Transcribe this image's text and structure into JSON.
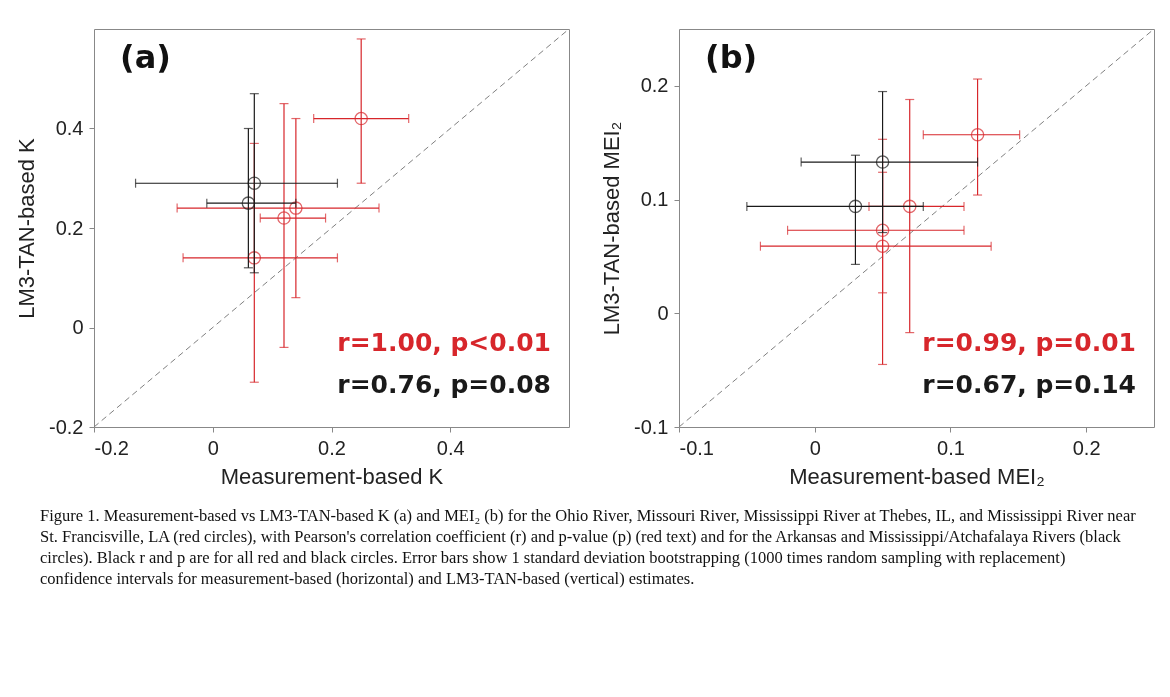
{
  "chart_data": [
    {
      "type": "scatter",
      "xlabel": "Measurement-based K",
      "ylabel": "LM3-TAN-based K",
      "xlim": [
        -0.2,
        0.6
      ],
      "ylim": [
        -0.2,
        0.6
      ],
      "xticks": [
        -0.2,
        0,
        0.2,
        0.4
      ],
      "yticks": [
        -0.2,
        0,
        0.2,
        0.4
      ],
      "marker": "circle",
      "series": [
        {
          "type": "line",
          "color": "#808080",
          "line_style": "dashed",
          "marker": "none",
          "x": [
            -0.2,
            0.6
          ],
          "values": [
            -0.2,
            0.6
          ]
        },
        {
          "color": "#d7262b",
          "x": [
            0.25,
            0.14,
            0.12,
            0.07
          ],
          "values": [
            0.42,
            0.24,
            0.22,
            0.14
          ],
          "errors": [
            [
              0.29,
              0.58
            ],
            [
              0.06,
              0.42
            ],
            [
              -0.04,
              0.45
            ],
            [
              -0.11,
              0.37
            ]
          ],
          "xerrors": [
            [
              0.17,
              0.33
            ],
            [
              -0.06,
              0.28
            ],
            [
              0.08,
              0.19
            ],
            [
              -0.05,
              0.21
            ]
          ]
        },
        {
          "color": "#1a1a1a",
          "x": [
            0.07,
            0.06
          ],
          "values": [
            0.29,
            0.25
          ],
          "errors": [
            0.18,
            [
              0.12,
              0.4
            ]
          ],
          "xerrors": [
            [
              -0.13,
              0.21
            ],
            [
              -0.01,
              0.14
            ]
          ]
        }
      ],
      "annotations": [
        "(a)",
        "r=1.00, p<0.01",
        "r=0.76, p=0.08"
      ]
    },
    {
      "type": "scatter",
      "xlabel": "Measurement-based MEI₂",
      "ylabel": "LM3-TAN-based MEI₂",
      "xlim": [
        -0.1,
        0.25
      ],
      "ylim": [
        -0.1,
        0.25
      ],
      "xticks": [
        -0.1,
        0,
        0.1,
        0.2
      ],
      "yticks": [
        -0.1,
        0,
        0.1,
        0.2
      ],
      "marker": "circle",
      "series": [
        {
          "type": "line",
          "color": "#808080",
          "line_style": "dashed",
          "marker": "none",
          "x": [
            -0.1,
            0.25
          ],
          "values": [
            -0.1,
            0.25
          ]
        },
        {
          "color": "#d7262b",
          "x": [
            0.12,
            0.07,
            0.05,
            0.05
          ],
          "values": [
            0.157,
            0.094,
            0.073,
            0.059
          ],
          "errors": [
            [
              0.104,
              0.206
            ],
            [
              -0.017,
              0.188
            ],
            [
              0.018,
              0.124
            ],
            [
              -0.045,
              0.153
            ]
          ],
          "xerrors": [
            [
              0.08,
              0.151
            ],
            [
              0.04,
              0.11
            ],
            [
              -0.02,
              0.11
            ],
            [
              -0.04,
              0.13
            ]
          ]
        },
        {
          "color": "#1a1a1a",
          "x": [
            0.05,
            0.03
          ],
          "values": [
            0.133,
            0.094
          ],
          "errors": [
            [
              0.071,
              0.195
            ],
            [
              0.043,
              0.139
            ]
          ],
          "xerrors": [
            [
              -0.01,
              0.12
            ],
            [
              -0.05,
              0.08
            ]
          ]
        }
      ],
      "annotations": [
        "(b)",
        "r=0.99, p=0.01",
        "r=0.67, p=0.14",
        "Figure 1. Measurement-based vs LM3-TAN-based K (a) and MEI₂ (b) for the Ohio River, Missouri River, Mississippi River at Thebes, IL, and Mississippi River near St. Francisville, LA (red circles), with Pearson's correlation coefficient (r) and p-value (p) (red text) and for the Arkansas and Mississippi/Atchafalaya Rivers (black circles). Black r and p are for all red and black circles. Error bars show 1 standard deviation bootstrapping (1000 times random sampling with replacement) confidence intervals for measurement-based (horizontal) and LM3-TAN-based (vertical) estimates."
      ]
    }
  ]
}
